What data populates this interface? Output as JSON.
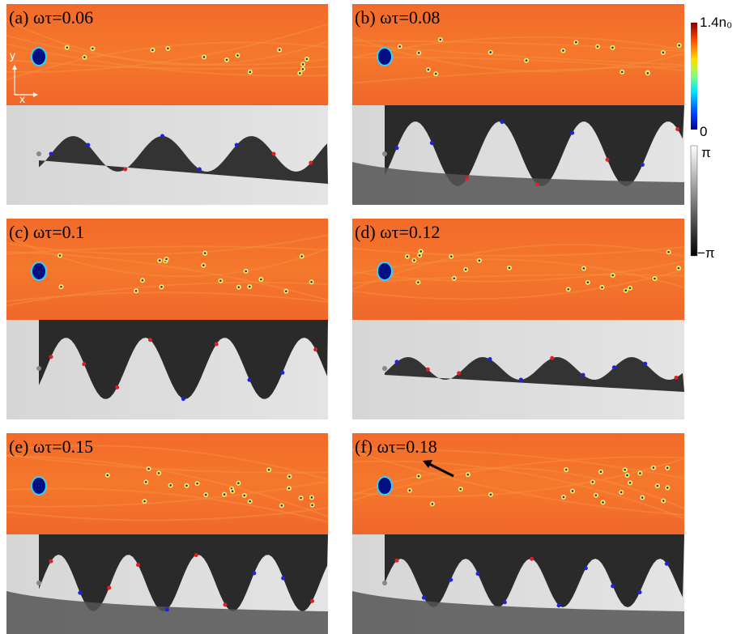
{
  "panels": [
    {
      "label": "(a) ωτ=0.06"
    },
    {
      "label": "(b) ωτ=0.08"
    },
    {
      "label": "(c) ωτ=0.1"
    },
    {
      "label": "(d) ωτ=0.12"
    },
    {
      "label": "(e) ωτ=0.15"
    },
    {
      "label": "(f) ωτ=0.18"
    }
  ],
  "axes_indicator": {
    "y": "y",
    "x": "x"
  },
  "colorbars": {
    "density": {
      "max_label": "1.4n₀",
      "min_label": "0"
    },
    "phase": {
      "max_label": "π",
      "min_label": "−π"
    }
  }
}
